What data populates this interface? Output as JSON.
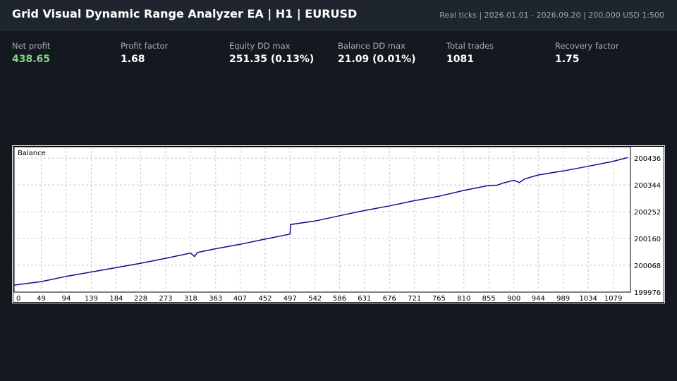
{
  "header": {
    "title": "Grid Visual Dynamic Range Analyzer EA  |  H1  |  EURUSD",
    "info": "Real ticks  |  2026.01.01 - 2026.09.20  |  200,000 USD  1:500"
  },
  "metrics": [
    {
      "label": "Net profit",
      "value": "438.65",
      "positive": true
    },
    {
      "label": "Profit factor",
      "value": "1.68"
    },
    {
      "label": "Equity DD max",
      "value": "251.35 (0.13%)"
    },
    {
      "label": "Balance DD max",
      "value": "21.09 (0.01%)"
    },
    {
      "label": "Total trades",
      "value": "1081"
    },
    {
      "label": "Recovery factor",
      "value": "1.75"
    }
  ],
  "colors": {
    "line": "#0d0d8f",
    "grid": "#c8c8c8",
    "positive": "#7fd87f"
  },
  "chart_data": {
    "type": "line",
    "legend": "Balance",
    "x_ticks": [
      0,
      49,
      94,
      139,
      184,
      228,
      273,
      318,
      363,
      407,
      452,
      497,
      542,
      586,
      631,
      676,
      721,
      765,
      810,
      855,
      900,
      944,
      989,
      1034,
      1079
    ],
    "y_ticks": [
      199976,
      200068,
      200160,
      200252,
      200344,
      200436
    ],
    "xlim": [
      0,
      1110
    ],
    "ylim": [
      199976,
      200475
    ],
    "grid": true,
    "series": [
      {
        "points": [
          [
            0,
            200000
          ],
          [
            49,
            200012
          ],
          [
            94,
            200030
          ],
          [
            139,
            200045
          ],
          [
            184,
            200060
          ],
          [
            228,
            200075
          ],
          [
            273,
            200092
          ],
          [
            318,
            200110
          ],
          [
            325,
            200098
          ],
          [
            330,
            200112
          ],
          [
            363,
            200125
          ],
          [
            407,
            200140
          ],
          [
            452,
            200158
          ],
          [
            497,
            200175
          ],
          [
            498,
            200208
          ],
          [
            542,
            200220
          ],
          [
            586,
            200238
          ],
          [
            631,
            200256
          ],
          [
            676,
            200272
          ],
          [
            721,
            200290
          ],
          [
            765,
            200305
          ],
          [
            810,
            200325
          ],
          [
            855,
            200342
          ],
          [
            870,
            200343
          ],
          [
            880,
            200350
          ],
          [
            900,
            200360
          ],
          [
            910,
            200352
          ],
          [
            920,
            200365
          ],
          [
            944,
            200378
          ],
          [
            989,
            200392
          ],
          [
            1034,
            200408
          ],
          [
            1079,
            200425
          ],
          [
            1105,
            200438
          ]
        ]
      }
    ]
  }
}
